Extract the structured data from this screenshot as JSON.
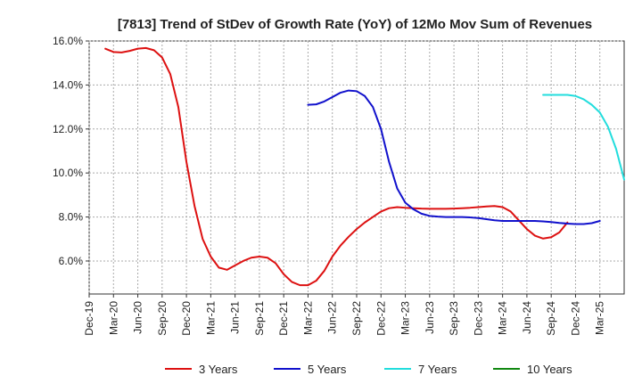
{
  "chart_data": {
    "type": "line",
    "title": "[7813]  Trend of StDev of Growth Rate (YoY) of 12Mo Mov Sum of Revenues",
    "xlabel": "",
    "ylabel": "",
    "ylim": [
      4.5,
      16.0
    ],
    "yticks": [
      6.0,
      8.0,
      10.0,
      12.0,
      14.0,
      16.0
    ],
    "ytick_labels": [
      "6.0%",
      "8.0%",
      "10.0%",
      "12.0%",
      "14.0%",
      "16.0%"
    ],
    "xlim": [
      0,
      66
    ],
    "xtick_labels": [
      "Dec-19",
      "Mar-20",
      "Jun-20",
      "Sep-20",
      "Dec-20",
      "Mar-21",
      "Jun-21",
      "Sep-21",
      "Dec-21",
      "Mar-22",
      "Jun-22",
      "Sep-22",
      "Dec-22",
      "Mar-23",
      "Jun-23",
      "Sep-23",
      "Dec-23",
      "Mar-24",
      "Jun-24",
      "Sep-24",
      "Dec-24",
      "Mar-25"
    ],
    "grid": true,
    "legend_position": "bottom",
    "series": [
      {
        "name": "3 Years",
        "color": "#dd1111",
        "start_index": 2,
        "values": [
          15.65,
          15.5,
          15.48,
          15.55,
          15.65,
          15.68,
          15.58,
          15.25,
          14.5,
          13.0,
          10.5,
          8.5,
          7.0,
          6.2,
          5.7,
          5.6,
          5.8,
          6.0,
          6.15,
          6.2,
          6.15,
          5.9,
          5.4,
          5.05,
          4.9,
          4.9,
          5.1,
          5.55,
          6.2,
          6.7,
          7.1,
          7.45,
          7.75,
          8.0,
          8.25,
          8.4,
          8.45,
          8.42,
          8.4,
          8.38,
          8.37,
          8.37,
          8.37,
          8.38,
          8.4,
          8.42,
          8.45,
          8.48,
          8.5,
          8.45,
          8.25,
          7.85,
          7.45,
          7.15,
          7.02,
          7.08,
          7.3,
          7.75
        ]
      },
      {
        "name": "5 Years",
        "color": "#1111cc",
        "start_index": 27,
        "values": [
          13.1,
          13.12,
          13.25,
          13.45,
          13.65,
          13.75,
          13.72,
          13.5,
          13.0,
          12.0,
          10.5,
          9.3,
          8.65,
          8.35,
          8.15,
          8.05,
          8.02,
          8.0,
          8.0,
          8.0,
          7.98,
          7.95,
          7.9,
          7.85,
          7.82,
          7.82,
          7.82,
          7.82,
          7.82,
          7.8,
          7.77,
          7.73,
          7.7,
          7.68,
          7.68,
          7.72,
          7.82
        ]
      },
      {
        "name": "7 Years",
        "color": "#22dddd",
        "start_index": 56,
        "values": [
          13.55,
          13.55,
          13.55,
          13.55,
          13.5,
          13.35,
          13.1,
          12.75,
          12.1,
          11.1,
          9.7
        ]
      },
      {
        "name": "10 Years",
        "color": "#118811",
        "start_index": 0,
        "values": []
      }
    ]
  }
}
